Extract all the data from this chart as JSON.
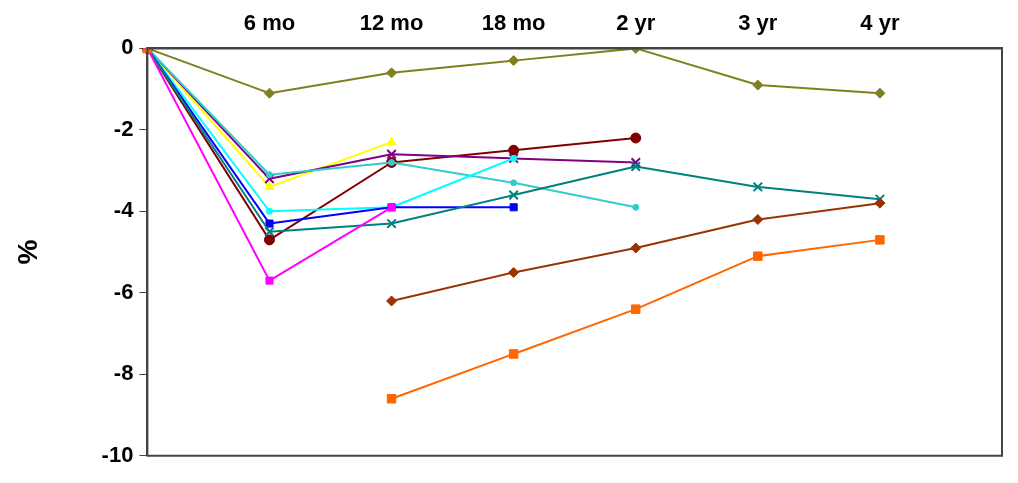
{
  "chart_data": {
    "type": "line",
    "ylabel": "%",
    "categories": [
      null,
      "6 mo",
      "12 mo",
      "18 mo",
      "2 yr",
      "3 yr",
      "4 yr",
      null
    ],
    "ylim": [
      -10,
      0
    ],
    "yticks": [
      -10,
      -8,
      -6,
      -4,
      -2,
      0
    ],
    "grid": false,
    "legend": false,
    "line_style": "solid",
    "series": [
      {
        "color": "#808020",
        "marker": "diamond",
        "values": [
          0,
          -1.1,
          -0.6,
          -0.3,
          0,
          -0.9,
          -1.1,
          null
        ]
      },
      {
        "color": "#ffff00",
        "marker": "triangle",
        "values": [
          0,
          -3.4,
          -2.3,
          null,
          null,
          null,
          null,
          null
        ]
      },
      {
        "color": "#800000",
        "marker": "circle",
        "values": [
          0,
          -4.7,
          -2.8,
          -2.5,
          -2.2,
          null,
          null,
          null
        ]
      },
      {
        "color": "#800080",
        "marker": "cross",
        "values": [
          0,
          -3.2,
          -2.6,
          -2.7,
          -2.8,
          null,
          null,
          null
        ]
      },
      {
        "color": "#33cccc",
        "marker": "circle",
        "values": [
          0,
          -3.1,
          -2.8,
          -3.3,
          -3.9,
          null,
          null,
          null
        ]
      },
      {
        "color": "#00ffff",
        "marker": "circle",
        "values": [
          0,
          -4.0,
          -3.9,
          -2.7,
          null,
          null,
          null,
          null
        ]
      },
      {
        "color": "#0000ff",
        "marker": "square",
        "values": [
          0,
          -4.3,
          -3.9,
          -3.9,
          null,
          null,
          null,
          null
        ]
      },
      {
        "color": "#008080",
        "marker": "cross",
        "values": [
          0,
          -4.5,
          -4.3,
          -3.6,
          -2.9,
          -3.4,
          -3.7,
          null
        ]
      },
      {
        "color": "#ff00ff",
        "marker": "square",
        "values": [
          0,
          -5.7,
          -3.9,
          null,
          null,
          null,
          null,
          null
        ]
      },
      {
        "color": "#993300",
        "marker": "diamond",
        "values": [
          null,
          null,
          -6.2,
          -5.5,
          -4.9,
          -4.2,
          -3.8,
          null
        ]
      },
      {
        "color": "#ff6600",
        "marker": "square",
        "values": [
          0,
          null,
          -8.6,
          -7.5,
          -6.4,
          -5.1,
          -4.7,
          null
        ]
      }
    ]
  }
}
